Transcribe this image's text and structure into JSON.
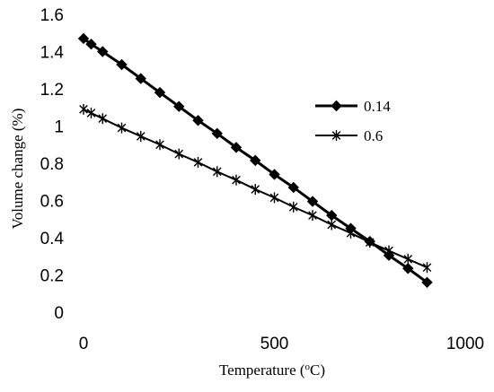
{
  "chart_data": {
    "type": "line",
    "title": "",
    "xlabel": "Temperature (oC)",
    "xlabel_parts": {
      "prefix": "Temperature (",
      "sup": "o",
      "suffix": "C)"
    },
    "ylabel": "Volume change (%)",
    "xlim": [
      0,
      1000
    ],
    "ylim": [
      0,
      1.6
    ],
    "xticks": [
      0,
      500,
      1000
    ],
    "xtick_labels": [
      "0",
      "500",
      "1000"
    ],
    "yticks": [
      0,
      0.2,
      0.4,
      0.6,
      0.8,
      1,
      1.2,
      1.4,
      1.6
    ],
    "ytick_labels": [
      "0",
      "0.2",
      "0.4",
      "0.6",
      "0.8",
      "1",
      "1.2",
      "1.4",
      "1.6"
    ],
    "grid": false,
    "legend_position": "right",
    "series": [
      {
        "name": "0.14",
        "marker": "diamond",
        "color": "#000000",
        "x": [
          0,
          20,
          50,
          100,
          150,
          200,
          250,
          300,
          350,
          400,
          450,
          500,
          550,
          600,
          650,
          700,
          750,
          800,
          850,
          900
        ],
        "y": [
          1.47,
          1.44,
          1.4,
          1.33,
          1.255,
          1.18,
          1.105,
          1.03,
          0.96,
          0.885,
          0.815,
          0.74,
          0.67,
          0.595,
          0.52,
          0.45,
          0.38,
          0.305,
          0.235,
          0.16
        ]
      },
      {
        "name": "0.6",
        "marker": "asterisk",
        "color": "#000000",
        "x": [
          0,
          20,
          50,
          100,
          150,
          200,
          250,
          300,
          350,
          400,
          450,
          500,
          550,
          600,
          650,
          700,
          750,
          800,
          850,
          900
        ],
        "y": [
          1.09,
          1.07,
          1.04,
          0.99,
          0.945,
          0.9,
          0.85,
          0.805,
          0.755,
          0.71,
          0.66,
          0.615,
          0.565,
          0.52,
          0.47,
          0.425,
          0.375,
          0.33,
          0.285,
          0.24
        ]
      }
    ]
  }
}
